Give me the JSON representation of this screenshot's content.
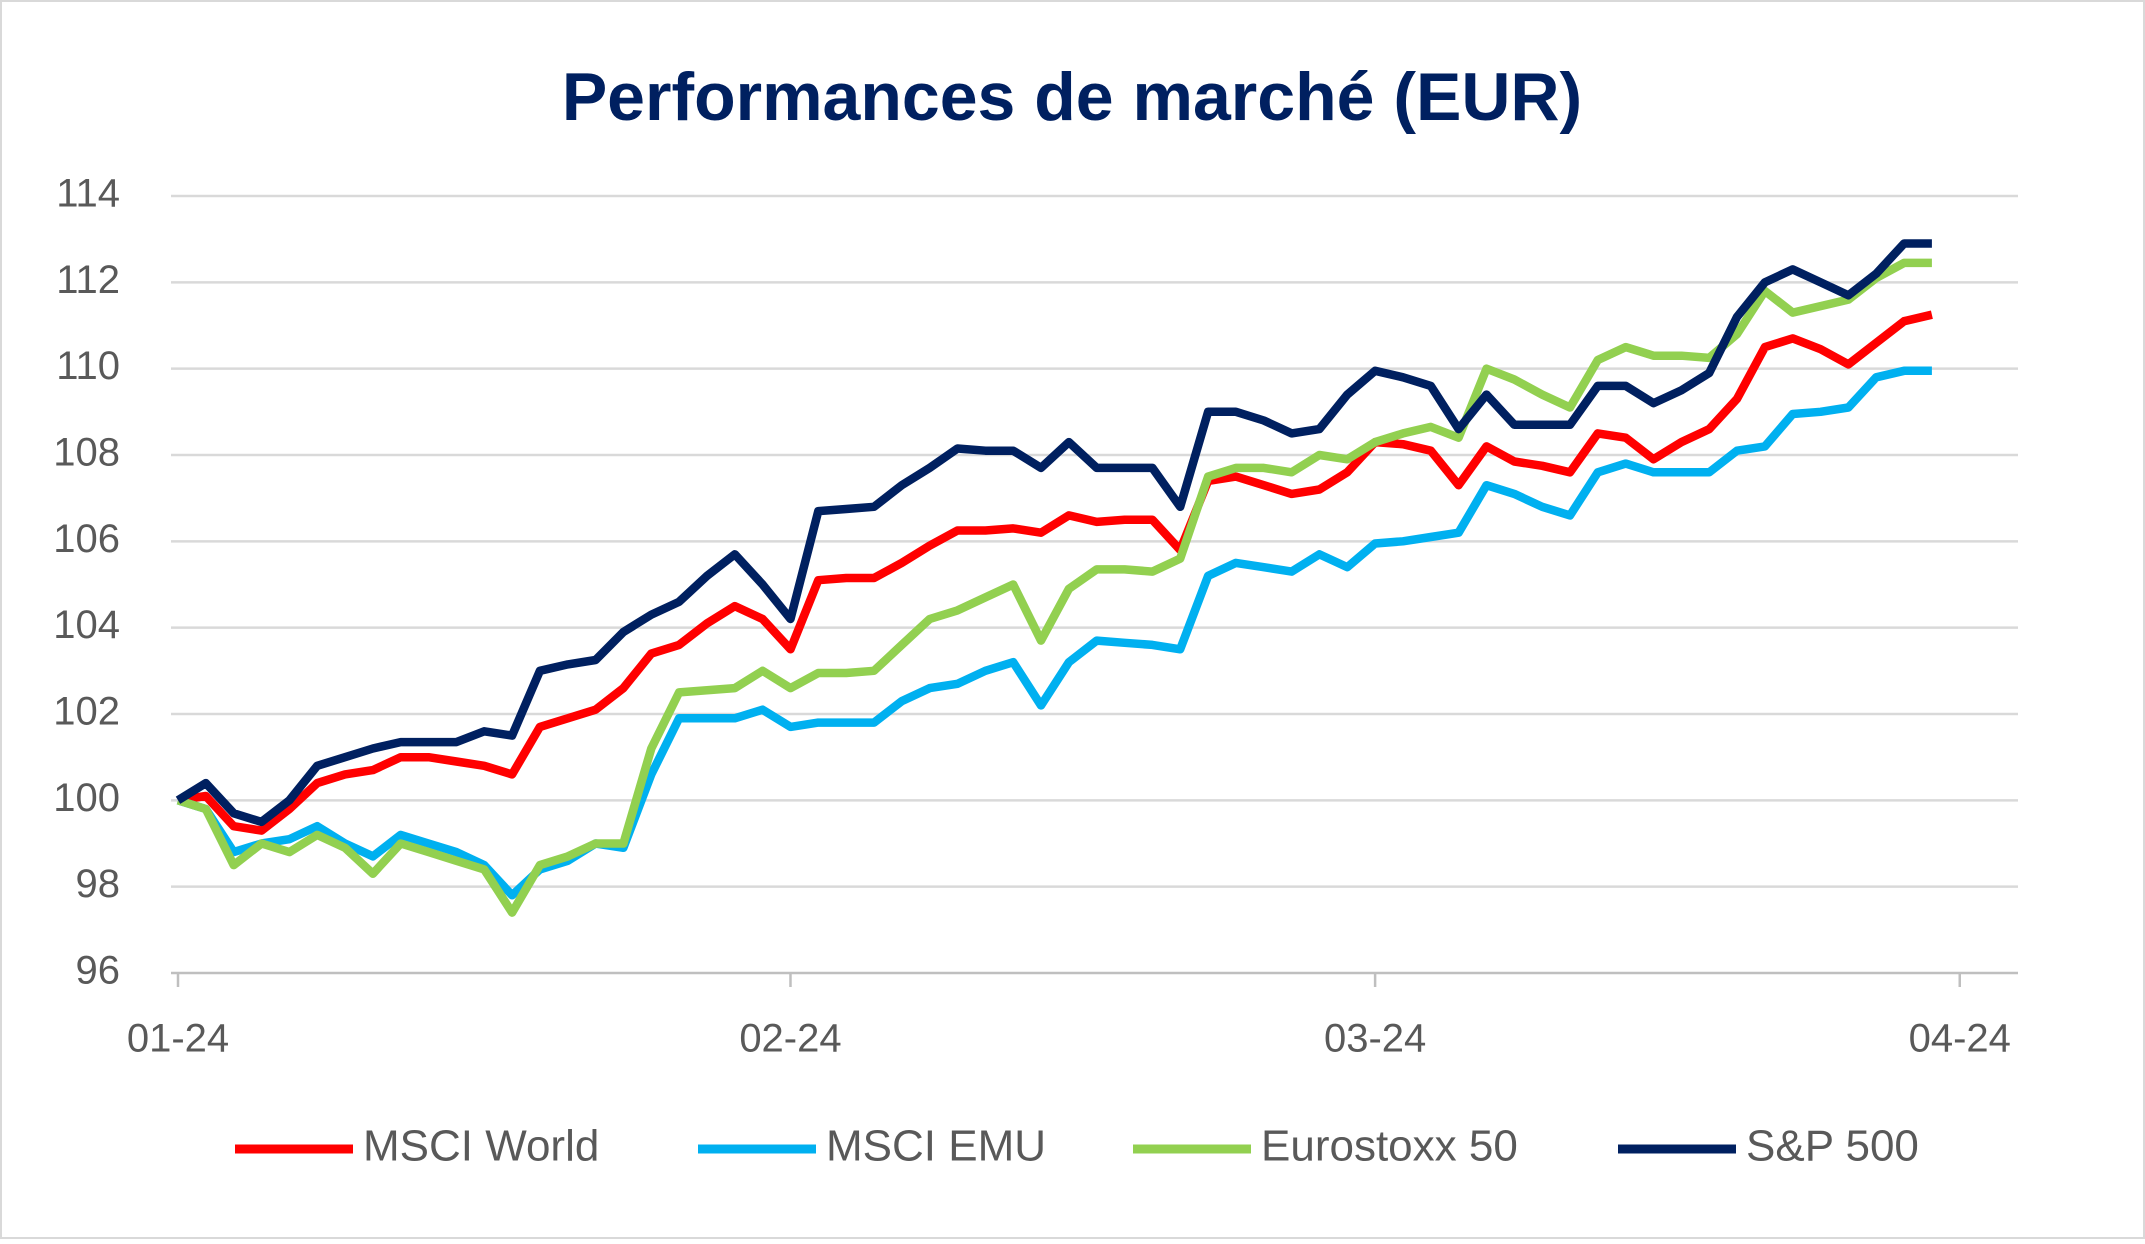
{
  "chart_data": {
    "type": "line",
    "title": "Performances de marché (EUR)",
    "categories": [
      "01-24",
      null,
      null,
      null,
      null,
      null,
      null,
      null,
      null,
      null,
      null,
      null,
      null,
      null,
      null,
      null,
      null,
      null,
      null,
      null,
      null,
      null,
      "02-24",
      null,
      null,
      null,
      null,
      null,
      null,
      null,
      null,
      null,
      null,
      null,
      null,
      null,
      null,
      null,
      null,
      null,
      null,
      null,
      null,
      "03-24",
      null,
      null,
      null,
      null,
      null,
      null,
      null,
      null,
      null,
      null,
      null,
      null,
      null,
      null,
      null,
      null,
      null,
      null,
      null,
      null,
      "04-24"
    ],
    "series": [
      {
        "name": "MSCI World",
        "color": "#ff0000",
        "values": [
          100,
          100.1,
          99.4,
          99.3,
          99.8,
          100.4,
          100.6,
          100.7,
          101.0,
          101.0,
          100.9,
          100.8,
          100.6,
          101.7,
          101.9,
          102.1,
          102.6,
          103.4,
          103.6,
          104.1,
          104.5,
          104.2,
          103.5,
          105.1,
          105.15,
          105.15,
          105.5,
          105.9,
          106.25,
          106.25,
          106.3,
          106.2,
          106.6,
          106.45,
          106.5,
          106.5,
          105.8,
          107.4,
          107.5,
          107.3,
          107.1,
          107.2,
          107.6,
          108.3,
          108.25,
          108.1,
          107.3,
          108.2,
          107.85,
          107.75,
          107.6,
          108.5,
          108.4,
          107.9,
          108.3,
          108.6,
          109.3,
          110.5,
          110.7,
          110.45,
          110.1,
          110.6,
          111.1,
          111.25,
          null
        ]
      },
      {
        "name": "MSCI EMU",
        "color": "#00b0f0",
        "values": [
          100,
          99.8,
          98.8,
          99.0,
          99.1,
          99.4,
          99.0,
          98.7,
          99.2,
          99.0,
          98.8,
          98.5,
          97.8,
          98.4,
          98.6,
          99.0,
          98.9,
          100.6,
          101.9,
          101.9,
          101.9,
          102.1,
          101.7,
          101.8,
          101.8,
          101.8,
          102.3,
          102.6,
          102.7,
          103.0,
          103.2,
          102.2,
          103.2,
          103.7,
          103.65,
          103.6,
          103.5,
          105.2,
          105.5,
          105.4,
          105.3,
          105.7,
          105.4,
          105.95,
          106.0,
          106.1,
          106.2,
          107.3,
          107.1,
          106.8,
          106.6,
          107.6,
          107.8,
          107.6,
          107.6,
          107.6,
          108.1,
          108.2,
          108.95,
          109.0,
          109.1,
          109.8,
          109.95,
          109.95,
          null
        ]
      },
      {
        "name": "Eurostoxx 50",
        "color": "#92d050",
        "values": [
          100,
          99.8,
          98.5,
          99.0,
          98.8,
          99.2,
          98.9,
          98.3,
          99.0,
          98.8,
          98.6,
          98.4,
          97.4,
          98.5,
          98.7,
          99.0,
          99.0,
          101.2,
          102.5,
          102.55,
          102.6,
          103.0,
          102.6,
          102.95,
          102.95,
          103.0,
          103.6,
          104.2,
          104.4,
          104.7,
          105.0,
          103.7,
          104.9,
          105.35,
          105.35,
          105.3,
          105.6,
          107.5,
          107.7,
          107.7,
          107.6,
          108.0,
          107.9,
          108.3,
          108.5,
          108.65,
          108.4,
          110.0,
          109.75,
          109.4,
          109.1,
          110.2,
          110.5,
          110.3,
          110.3,
          110.25,
          110.8,
          111.8,
          111.3,
          111.45,
          111.6,
          112.1,
          112.45,
          112.45,
          null
        ]
      },
      {
        "name": "S&P 500",
        "color": "#002060",
        "values": [
          100,
          100.4,
          99.7,
          99.5,
          100.0,
          100.8,
          101.0,
          101.2,
          101.35,
          101.35,
          101.35,
          101.6,
          101.5,
          103.0,
          103.15,
          103.25,
          103.9,
          104.3,
          104.6,
          105.2,
          105.7,
          105.0,
          104.2,
          106.7,
          106.75,
          106.8,
          107.3,
          107.7,
          108.15,
          108.1,
          108.1,
          107.7,
          108.3,
          107.7,
          107.7,
          107.7,
          106.8,
          109.0,
          109.0,
          108.8,
          108.5,
          108.6,
          109.4,
          109.95,
          109.8,
          109.6,
          108.6,
          109.4,
          108.7,
          108.7,
          108.7,
          109.6,
          109.6,
          109.2,
          109.5,
          109.9,
          111.2,
          112.0,
          112.3,
          112.0,
          111.7,
          112.2,
          112.9,
          112.9,
          null
        ]
      }
    ],
    "ylim": [
      96,
      114
    ],
    "yticks": [
      96,
      98,
      100,
      102,
      104,
      106,
      108,
      110,
      112,
      114
    ],
    "grid": true,
    "legend": "bottom"
  }
}
